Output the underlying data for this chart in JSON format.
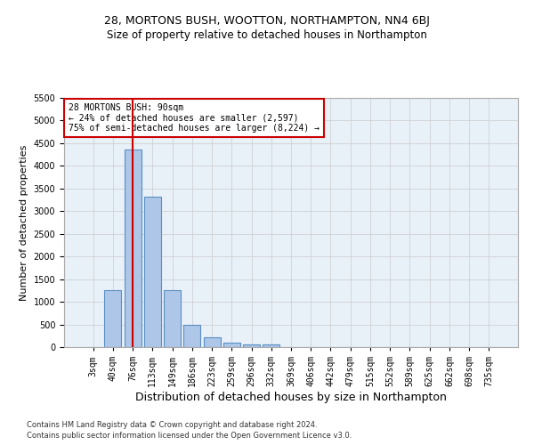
{
  "title1": "28, MORTONS BUSH, WOOTTON, NORTHAMPTON, NN4 6BJ",
  "title2": "Size of property relative to detached houses in Northampton",
  "xlabel": "Distribution of detached houses by size in Northampton",
  "ylabel": "Number of detached properties",
  "footnote1": "Contains HM Land Registry data © Crown copyright and database right 2024.",
  "footnote2": "Contains public sector information licensed under the Open Government Licence v3.0.",
  "bar_labels": [
    "3sqm",
    "40sqm",
    "76sqm",
    "113sqm",
    "149sqm",
    "186sqm",
    "223sqm",
    "259sqm",
    "296sqm",
    "332sqm",
    "369sqm",
    "406sqm",
    "442sqm",
    "479sqm",
    "515sqm",
    "552sqm",
    "589sqm",
    "625sqm",
    "662sqm",
    "698sqm",
    "735sqm"
  ],
  "bar_values": [
    0,
    1260,
    4360,
    3310,
    1260,
    490,
    215,
    90,
    60,
    50,
    0,
    0,
    0,
    0,
    0,
    0,
    0,
    0,
    0,
    0,
    0
  ],
  "bar_color": "#aec6e8",
  "bar_edge_color": "#5a8fc2",
  "vline_x": 2.0,
  "vline_color": "#cc0000",
  "annotation_text": "28 MORTONS BUSH: 90sqm\n← 24% of detached houses are smaller (2,597)\n75% of semi-detached houses are larger (8,224) →",
  "annotation_box_color": "#ffffff",
  "annotation_box_edgecolor": "#cc0000",
  "ylim": [
    0,
    5500
  ],
  "yticks": [
    0,
    500,
    1000,
    1500,
    2000,
    2500,
    3000,
    3500,
    4000,
    4500,
    5000,
    5500
  ],
  "background_color": "#ffffff",
  "axes_background": "#e8f0f8",
  "grid_color": "#cccccc",
  "title1_fontsize": 9,
  "title2_fontsize": 8.5,
  "xlabel_fontsize": 9,
  "ylabel_fontsize": 8,
  "annotation_fontsize": 7,
  "tick_fontsize": 7,
  "footnote_fontsize": 6
}
